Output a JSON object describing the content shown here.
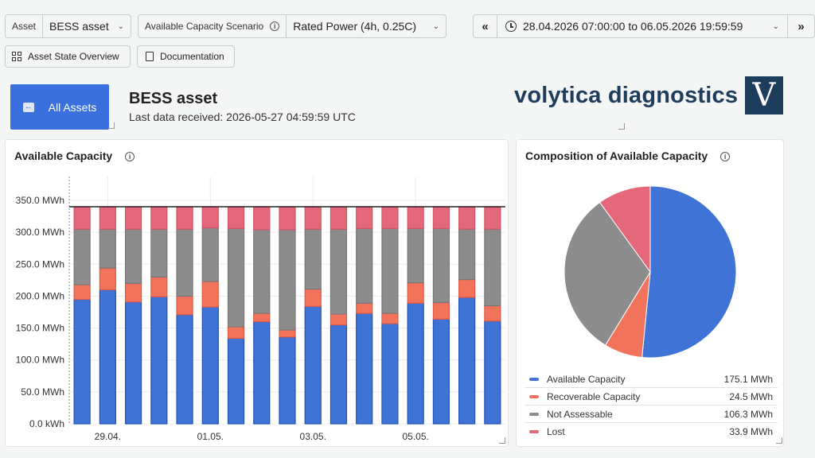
{
  "toolbar": {
    "asset_label": "Asset",
    "asset_value": "BESS asset",
    "scenario_label": "Available Capacity Scenario",
    "scenario_value": "Rated Power (4h, 0.25C)",
    "time_range": "28.04.2026 07:00:00 to 06.05.2026 19:59:59",
    "prev_label": "«",
    "next_label": "»",
    "asset_overview_label": "Asset State Overview",
    "documentation_label": "Documentation"
  },
  "header": {
    "all_assets_label": "All Assets",
    "title": "BESS asset",
    "last_data": "Last data received: 2026-05-27 04:59:59 UTC",
    "brand": "volytica diagnostics",
    "brand_mark": "V"
  },
  "capacity_panel": {
    "title": "Available Capacity"
  },
  "composition_panel": {
    "title": "Composition of Available Capacity",
    "legend": [
      {
        "name": "Available Capacity",
        "value": "175.1 MWh",
        "color": "#3f73d6"
      },
      {
        "name": "Recoverable Capacity",
        "value": "24.5 MWh",
        "color": "#f2735c"
      },
      {
        "name": "Not Assessable",
        "value": "106.3 MWh",
        "color": "#8c8c8c"
      },
      {
        "name": "Lost",
        "value": "33.9 MWh",
        "color": "#e4687a"
      }
    ]
  },
  "colors": {
    "available": "#3f73d6",
    "recoverable": "#f2735c",
    "not_assessable": "#8c8c8c",
    "lost": "#e4687a",
    "brand": "#1e3d5c"
  },
  "chart_data": [
    {
      "type": "bar",
      "stacked": true,
      "ylim": [
        0,
        350
      ],
      "yticks": [
        "0.0 kWh",
        "50.0 MWh",
        "100.0 MWh",
        "150.0 MWh",
        "200.0 MWh",
        "250.0 MWh",
        "300.0 MWh",
        "350.0 MWh"
      ],
      "xticks": [
        {
          "label": "29.04.",
          "bar": 1
        },
        {
          "label": "01.05.",
          "bar": 5
        },
        {
          "label": "03.05.",
          "bar": 9
        },
        {
          "label": "05.05.",
          "bar": 13
        }
      ],
      "reference_line": 340,
      "series": [
        {
          "key": "available",
          "values": [
            195,
            210,
            191,
            199,
            171,
            183,
            134,
            160,
            136,
            184,
            155,
            173,
            157,
            189,
            164,
            198,
            161
          ]
        },
        {
          "key": "recoverable",
          "values": [
            23,
            34,
            29,
            31,
            29,
            40,
            18,
            13,
            11,
            27,
            17,
            16,
            16,
            32,
            26,
            28,
            24
          ]
        },
        {
          "key": "not_assessable",
          "values": [
            87,
            61,
            85,
            75,
            105,
            84,
            154,
            131,
            157,
            94,
            133,
            117,
            133,
            85,
            116,
            79,
            120
          ]
        },
        {
          "key": "lost",
          "values": [
            35,
            35,
            35,
            35,
            35,
            33,
            34,
            36,
            36,
            35,
            35,
            34,
            34,
            34,
            34,
            35,
            35
          ]
        }
      ]
    },
    {
      "type": "pie",
      "labels": [
        "Available Capacity",
        "Recoverable Capacity",
        "Not Assessable",
        "Lost"
      ],
      "values": [
        175.1,
        24.5,
        106.3,
        33.9
      ]
    }
  ]
}
